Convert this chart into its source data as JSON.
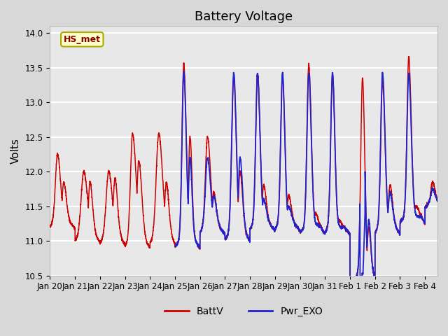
{
  "title": "Battery Voltage",
  "ylabel": "Volts",
  "ylim": [
    10.5,
    14.1
  ],
  "yticks": [
    10.5,
    11.0,
    11.5,
    12.0,
    12.5,
    13.0,
    13.5,
    14.0
  ],
  "line1_color": "#cc0000",
  "line2_color": "#2222cc",
  "line1_label": "BattV",
  "line2_label": "Pwr_EXO",
  "station_label": "HS_met",
  "title_fontsize": 13,
  "label_fontsize": 11,
  "tick_fontsize": 8.5,
  "xticklabels": [
    "Jan 20",
    "Jan 21",
    "Jan 22",
    "Jan 23",
    "Jan 24",
    "Jan 25",
    "Jan 26",
    "Jan 27",
    "Jan 28",
    "Jan 29",
    "Jan 30",
    "Jan 31",
    "Feb 1",
    "Feb 2",
    "Feb 3",
    "Feb 4"
  ],
  "fig_bg": "#d8d8d8",
  "ax_bg": "#e8e8e8",
  "grid_color": "#ffffff"
}
